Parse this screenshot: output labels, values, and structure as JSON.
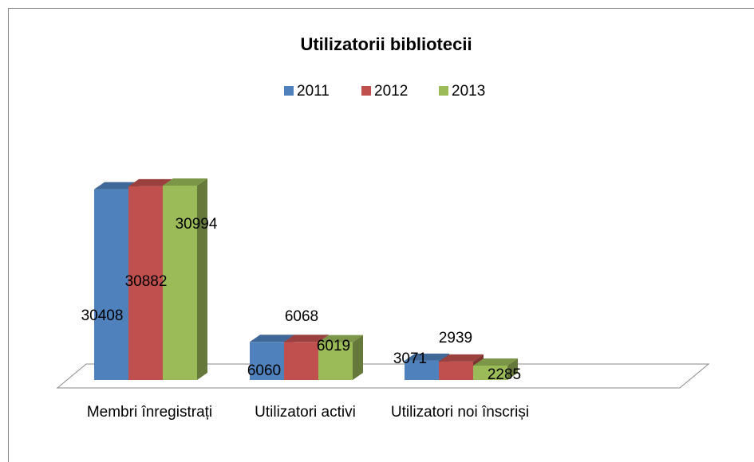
{
  "chart_data": {
    "type": "bar3d",
    "title": "Utilizatorii bibliotecii",
    "categories": [
      "Membri înregistrați",
      "Utilizatori activi",
      "Utilizatori noi înscriși"
    ],
    "series": [
      {
        "name": "2011",
        "color": "#4f81bd",
        "values": [
          30408,
          6060,
          3071
        ]
      },
      {
        "name": "2012",
        "color": "#c0504d",
        "values": [
          30882,
          6068,
          2939
        ]
      },
      {
        "name": "2013",
        "color": "#9bbb59",
        "values": [
          30994,
          6019,
          2285
        ]
      }
    ],
    "legend": "top"
  }
}
